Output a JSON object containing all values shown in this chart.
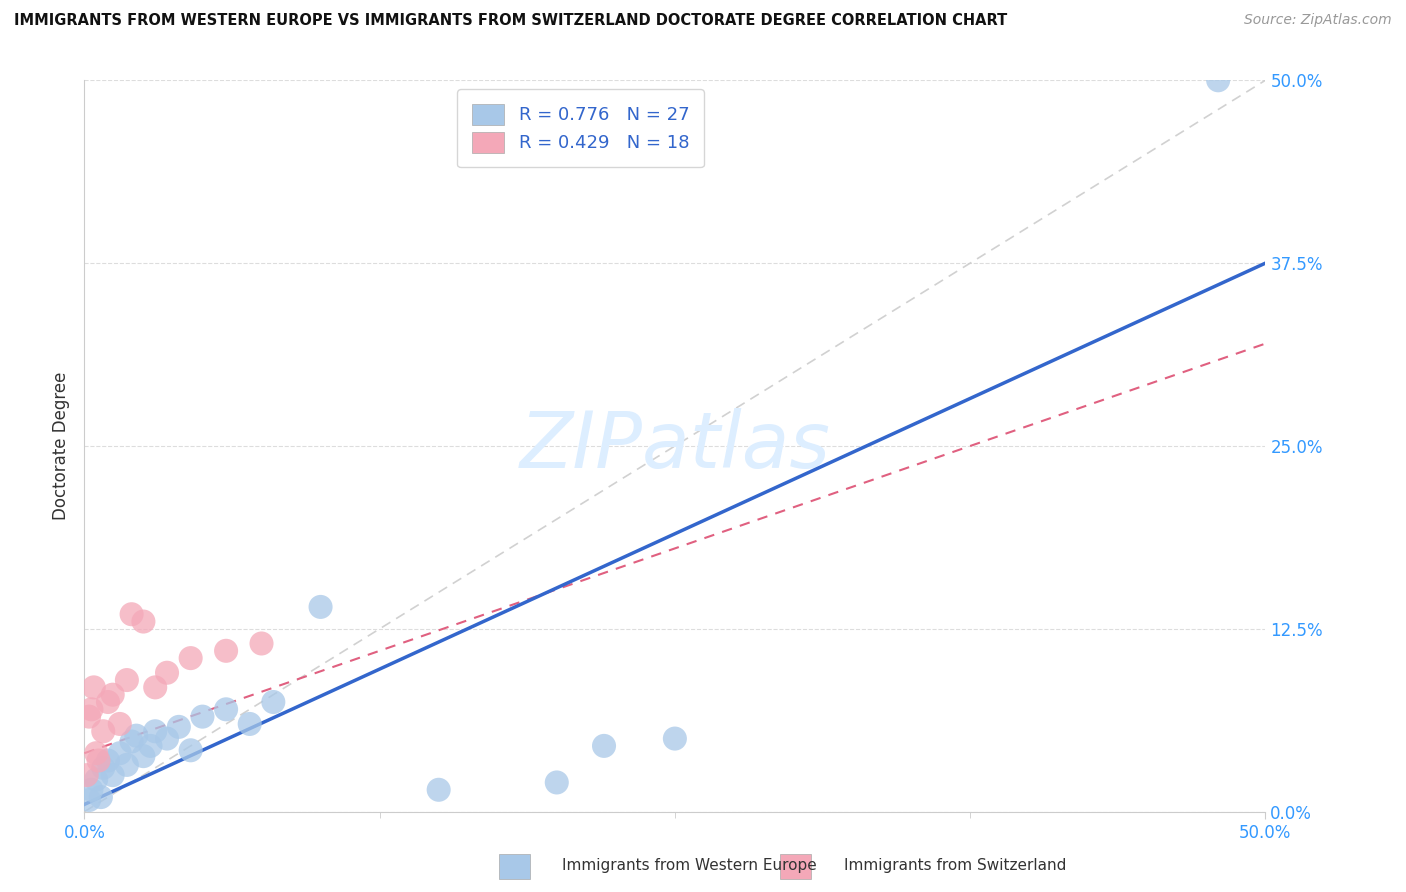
{
  "title": "IMMIGRANTS FROM WESTERN EUROPE VS IMMIGRANTS FROM SWITZERLAND DOCTORATE DEGREE CORRELATION CHART",
  "source": "Source: ZipAtlas.com",
  "ylabel": "Doctorate Degree",
  "ytick_values": [
    0.0,
    12.5,
    25.0,
    37.5,
    50.0
  ],
  "xlim": [
    0.0,
    50.0
  ],
  "ylim": [
    0.0,
    50.0
  ],
  "watermark": "ZIPatlas",
  "legend_blue_R": "R = 0.776",
  "legend_blue_N": "N = 27",
  "legend_pink_R": "R = 0.429",
  "legend_pink_N": "N = 18",
  "legend_label_blue": "Immigrants from Western Europe",
  "legend_label_pink": "Immigrants from Switzerland",
  "color_blue": "#A8C8E8",
  "color_pink": "#F4A8B8",
  "trendline_blue_color": "#3366CC",
  "trendline_pink_color": "#E06080",
  "trendline_diagonal_color": "#CCCCCC",
  "blue_scatter": [
    [
      0.2,
      0.8
    ],
    [
      0.3,
      1.5
    ],
    [
      0.5,
      2.2
    ],
    [
      0.7,
      1.0
    ],
    [
      0.8,
      3.0
    ],
    [
      1.0,
      3.5
    ],
    [
      1.2,
      2.5
    ],
    [
      1.5,
      4.0
    ],
    [
      1.8,
      3.2
    ],
    [
      2.0,
      4.8
    ],
    [
      2.2,
      5.2
    ],
    [
      2.5,
      3.8
    ],
    [
      2.8,
      4.5
    ],
    [
      3.0,
      5.5
    ],
    [
      3.5,
      5.0
    ],
    [
      4.0,
      5.8
    ],
    [
      4.5,
      4.2
    ],
    [
      5.0,
      6.5
    ],
    [
      6.0,
      7.0
    ],
    [
      7.0,
      6.0
    ],
    [
      8.0,
      7.5
    ],
    [
      10.0,
      14.0
    ],
    [
      15.0,
      1.5
    ],
    [
      20.0,
      2.0
    ],
    [
      22.0,
      4.5
    ],
    [
      25.0,
      5.0
    ],
    [
      48.0,
      50.0
    ]
  ],
  "pink_scatter": [
    [
      0.1,
      2.5
    ],
    [
      0.2,
      6.5
    ],
    [
      0.3,
      7.0
    ],
    [
      0.4,
      8.5
    ],
    [
      0.5,
      4.0
    ],
    [
      0.6,
      3.5
    ],
    [
      0.8,
      5.5
    ],
    [
      1.0,
      7.5
    ],
    [
      1.2,
      8.0
    ],
    [
      1.5,
      6.0
    ],
    [
      1.8,
      9.0
    ],
    [
      2.0,
      13.5
    ],
    [
      2.5,
      13.0
    ],
    [
      3.0,
      8.5
    ],
    [
      3.5,
      9.5
    ],
    [
      4.5,
      10.5
    ],
    [
      6.0,
      11.0
    ],
    [
      7.5,
      11.5
    ]
  ],
  "blue_trend_x": [
    0.0,
    50.0
  ],
  "blue_trend_y": [
    0.5,
    37.5
  ],
  "pink_trend_x": [
    0.0,
    50.0
  ],
  "pink_trend_y": [
    4.0,
    32.0
  ],
  "diag_trend_x": [
    0.0,
    50.0
  ],
  "diag_trend_y": [
    0.0,
    50.0
  ]
}
